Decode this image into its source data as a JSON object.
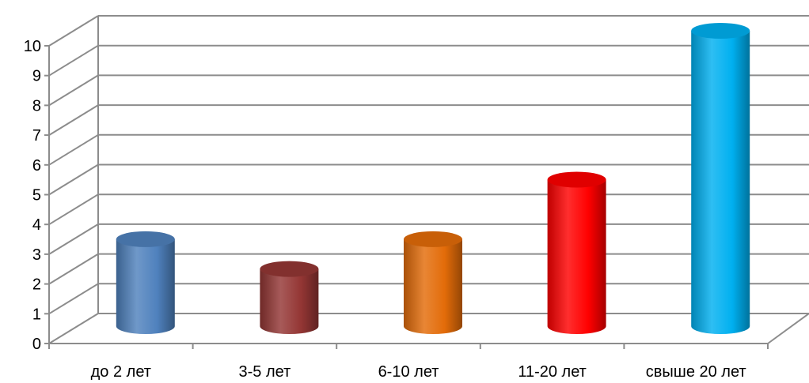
{
  "chart_data": {
    "type": "bar",
    "style": "3d-cylinder",
    "categories": [
      "до 2 лет",
      "3-5 лет",
      "6-10 лет",
      "11-20 лет",
      "свыше 20 лет"
    ],
    "values": [
      3,
      2,
      3,
      5,
      10
    ],
    "colors": [
      "#4f81bd",
      "#943634",
      "#e36c09",
      "#ff0000",
      "#00b0f0"
    ],
    "yticks": [
      "0",
      "1",
      "2",
      "3",
      "4",
      "5",
      "6",
      "7",
      "8",
      "9",
      "10"
    ],
    "ylim": [
      0,
      10
    ],
    "grid": true,
    "legend": "none"
  }
}
